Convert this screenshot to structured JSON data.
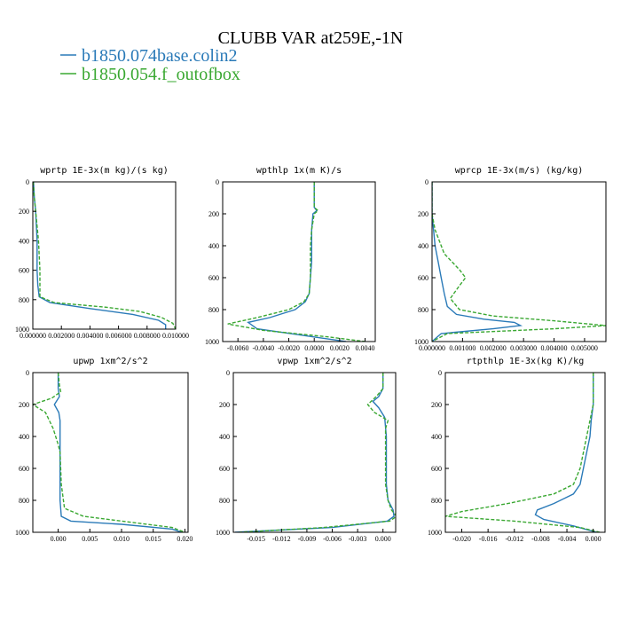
{
  "figure": {
    "title": "CLUBB VAR at259E,-1N",
    "legend": [
      {
        "label": "b1850.074base.colin2",
        "color": "#2a7ab8"
      },
      {
        "label": "b1850.054.f_outofbox",
        "color": "#3aa832"
      }
    ]
  },
  "chart_data": [
    {
      "type": "line",
      "title": "wprtp  1E-3x(m kg)/(s kg)",
      "xlim": [
        0.0,
        0.01
      ],
      "ylim": [
        0,
        1000
      ],
      "y_inverted": true,
      "xticks": [
        0.0,
        0.002,
        0.004,
        0.006,
        0.008,
        0.01
      ],
      "xtick_labels": [
        "0.000000",
        "0.002000",
        "0.004000",
        "0.006000",
        "0.008000",
        "0.010000"
      ],
      "yticks": [
        0,
        200,
        400,
        600,
        800,
        1000
      ],
      "series": [
        {
          "name": "b1850.074base.colin2",
          "color": "#2a7ab8",
          "dash": "",
          "x": [
            5e-05,
            0.0001,
            0.0002,
            0.00025,
            0.0003,
            0.0003,
            0.0003,
            0.00035,
            0.00045,
            0.0012,
            0.004,
            0.007,
            0.0088,
            0.0093,
            0.0093
          ],
          "y": [
            0,
            100,
            200,
            300,
            400,
            500,
            600,
            700,
            780,
            820,
            860,
            900,
            940,
            970,
            1000
          ]
        },
        {
          "name": "b1850.054.f_outofbox",
          "color": "#3aa832",
          "dash": "4,2",
          "x": [
            3e-05,
            0.0001,
            0.0002,
            0.0003,
            0.0004,
            0.00045,
            0.0005,
            0.0005,
            0.0005,
            0.0015,
            0.005,
            0.0075,
            0.009,
            0.0098,
            0.01
          ],
          "y": [
            0,
            100,
            200,
            300,
            400,
            500,
            600,
            700,
            780,
            820,
            850,
            880,
            920,
            960,
            1000
          ]
        }
      ]
    },
    {
      "type": "line",
      "title": "wpthlp  1x(m K)/s",
      "xlim": [
        -0.0072,
        0.0048
      ],
      "ylim": [
        0,
        1000
      ],
      "y_inverted": true,
      "xticks": [
        -0.006,
        -0.004,
        -0.002,
        0.0,
        0.002,
        0.004
      ],
      "xtick_labels": [
        "-0.0060",
        "-0.0040",
        "-0.0020",
        "0.0000",
        "0.0020",
        "0.0040"
      ],
      "yticks": [
        0,
        200,
        400,
        600,
        800,
        1000
      ],
      "series": [
        {
          "name": "b1850.074base.colin2",
          "color": "#2a7ab8",
          "dash": "",
          "x": [
            0.0,
            0.0,
            0.0,
            0.0002,
            -0.0001,
            -0.0002,
            -0.0002,
            -0.0002,
            -0.0003,
            -0.0004,
            -0.0007,
            -0.0015,
            -0.0035,
            -0.0052,
            -0.0045,
            -0.001,
            0.0025
          ],
          "y": [
            0,
            100,
            160,
            180,
            200,
            300,
            400,
            500,
            600,
            700,
            750,
            800,
            850,
            880,
            920,
            960,
            1000
          ]
        },
        {
          "name": "b1850.054.f_outofbox",
          "color": "#3aa832",
          "dash": "4,2",
          "x": [
            0.0,
            0.0,
            0.0,
            0.0003,
            0.0,
            -0.0002,
            -0.0003,
            -0.0003,
            -0.0003,
            -0.0004,
            -0.0008,
            -0.002,
            -0.0045,
            -0.0068,
            -0.004,
            0.001,
            0.004
          ],
          "y": [
            0,
            100,
            160,
            180,
            200,
            300,
            400,
            500,
            600,
            700,
            750,
            800,
            850,
            890,
            930,
            970,
            1000
          ]
        }
      ]
    },
    {
      "type": "line",
      "title": "wprcp  1E-3x(m/s) (kg/kg)",
      "xlim": [
        0.0,
        0.0057
      ],
      "ylim": [
        0,
        1000
      ],
      "y_inverted": true,
      "xticks": [
        0.0,
        0.001,
        0.002,
        0.003,
        0.004,
        0.005
      ],
      "xtick_labels": [
        "0.000000",
        "0.001000",
        "0.002000",
        "0.003000",
        "0.004000",
        "0.005000"
      ],
      "yticks": [
        0,
        200,
        400,
        600,
        800,
        1000
      ],
      "series": [
        {
          "name": "b1850.074base.colin2",
          "color": "#2a7ab8",
          "dash": "",
          "x": [
            0.0,
            0.0,
            5e-05,
            0.0001,
            0.0002,
            0.0003,
            0.0004,
            0.0005,
            0.0008,
            0.0017,
            0.0027,
            0.0029,
            0.002,
            0.0003,
            0.0
          ],
          "y": [
            0,
            200,
            300,
            400,
            500,
            600,
            700,
            780,
            830,
            860,
            880,
            900,
            920,
            950,
            1000
          ]
        },
        {
          "name": "b1850.054.f_outofbox",
          "color": "#3aa832",
          "dash": "4,2",
          "x": [
            0.0,
            0.0,
            0.0001,
            0.0004,
            0.0009,
            0.0011,
            0.0009,
            0.0006,
            0.0009,
            0.002,
            0.004,
            0.0057,
            0.004,
            0.0005,
            0.0
          ],
          "y": [
            0,
            200,
            300,
            450,
            550,
            600,
            650,
            730,
            800,
            840,
            870,
            900,
            920,
            950,
            1000
          ]
        }
      ]
    },
    {
      "type": "line",
      "title": "upwp  1xm^2/s^2",
      "xlim": [
        -0.004,
        0.0205
      ],
      "ylim": [
        0,
        1000
      ],
      "y_inverted": true,
      "xticks": [
        0.0,
        0.005,
        0.01,
        0.015,
        0.02
      ],
      "xtick_labels": [
        "0.000",
        "0.005",
        "0.010",
        "0.015",
        "0.020"
      ],
      "yticks": [
        0,
        200,
        400,
        600,
        800,
        1000
      ],
      "series": [
        {
          "name": "b1850.074base.colin2",
          "color": "#2a7ab8",
          "dash": "",
          "x": [
            0.0,
            0.0,
            0.0002,
            -0.0006,
            0.0001,
            0.0003,
            0.0003,
            0.0003,
            0.0003,
            0.0003,
            0.0005,
            0.002,
            0.01,
            0.018,
            0.0195
          ],
          "y": [
            0,
            100,
            150,
            200,
            250,
            300,
            400,
            500,
            600,
            800,
            900,
            930,
            950,
            980,
            1000
          ]
        },
        {
          "name": "b1850.054.f_outofbox",
          "color": "#3aa832",
          "dash": "4,2",
          "x": [
            0.0,
            0.0002,
            0.0004,
            -0.001,
            -0.004,
            -0.002,
            -0.0008,
            0.0,
            0.0003,
            0.0005,
            0.001,
            0.004,
            0.012,
            0.018,
            0.02
          ],
          "y": [
            0,
            80,
            120,
            160,
            200,
            250,
            350,
            450,
            500,
            700,
            850,
            900,
            940,
            970,
            1000
          ]
        }
      ]
    },
    {
      "type": "line",
      "title": "vpwp  1xm^2/s^2",
      "xlim": [
        -0.0177,
        0.0015
      ],
      "ylim": [
        0,
        1000
      ],
      "y_inverted": true,
      "xticks": [
        -0.015,
        -0.012,
        -0.009,
        -0.006,
        -0.003,
        0.0
      ],
      "xtick_labels": [
        "-0.015",
        "-0.012",
        "-0.009",
        "-0.006",
        "-0.003",
        "0.000"
      ],
      "yticks": [
        0,
        200,
        400,
        600,
        800,
        1000
      ],
      "series": [
        {
          "name": "b1850.074base.colin2",
          "color": "#2a7ab8",
          "dash": "",
          "x": [
            0.0,
            0.0,
            -0.0005,
            -0.0012,
            -0.0005,
            0.0002,
            0.0004,
            0.0004,
            0.0004,
            0.0006,
            0.0012,
            0.0013,
            0.0005,
            -0.006,
            -0.0175
          ],
          "y": [
            0,
            100,
            150,
            180,
            220,
            280,
            400,
            600,
            700,
            800,
            860,
            900,
            930,
            970,
            1000
          ]
        },
        {
          "name": "b1850.054.f_outofbox",
          "color": "#3aa832",
          "dash": "4,2",
          "x": [
            0.0,
            0.0,
            -0.0008,
            -0.0018,
            -0.001,
            0.0006,
            0.0003,
            0.0003,
            0.0003,
            0.0006,
            0.001,
            0.0016,
            0.0008,
            -0.007,
            -0.017
          ],
          "y": [
            0,
            100,
            150,
            200,
            250,
            300,
            350,
            500,
            700,
            800,
            860,
            900,
            930,
            970,
            1000
          ]
        }
      ]
    },
    {
      "type": "line",
      "title": "rtpthlp  1E-3x(kg K)/kg",
      "xlim": [
        -0.0225,
        0.0018
      ],
      "ylim": [
        0,
        1000
      ],
      "y_inverted": true,
      "xticks": [
        -0.02,
        -0.016,
        -0.012,
        -0.008,
        -0.004,
        0.0
      ],
      "xtick_labels": [
        "-0.020",
        "-0.016",
        "-0.012",
        "-0.008",
        "-0.004",
        "0.000"
      ],
      "yticks": [
        0,
        200,
        400,
        600,
        800,
        1000
      ],
      "series": [
        {
          "name": "b1850.074base.colin2",
          "color": "#2a7ab8",
          "dash": "",
          "x": [
            0.0,
            0.0,
            -0.0003,
            -0.0005,
            -0.001,
            -0.0015,
            -0.002,
            -0.003,
            -0.006,
            -0.0085,
            -0.0088,
            -0.0075,
            -0.003,
            0.0005
          ],
          "y": [
            0,
            200,
            300,
            400,
            500,
            600,
            700,
            760,
            820,
            860,
            890,
            920,
            960,
            1000
          ]
        },
        {
          "name": "b1850.054.f_outofbox",
          "color": "#3aa832",
          "dash": "4,2",
          "x": [
            0.0,
            0.0,
            -0.0005,
            -0.001,
            -0.0015,
            -0.002,
            -0.003,
            -0.006,
            -0.013,
            -0.02,
            -0.0225,
            -0.012,
            -0.002,
            0.001
          ],
          "y": [
            0,
            200,
            300,
            400,
            500,
            600,
            700,
            760,
            820,
            870,
            900,
            930,
            970,
            1000
          ]
        }
      ]
    }
  ]
}
